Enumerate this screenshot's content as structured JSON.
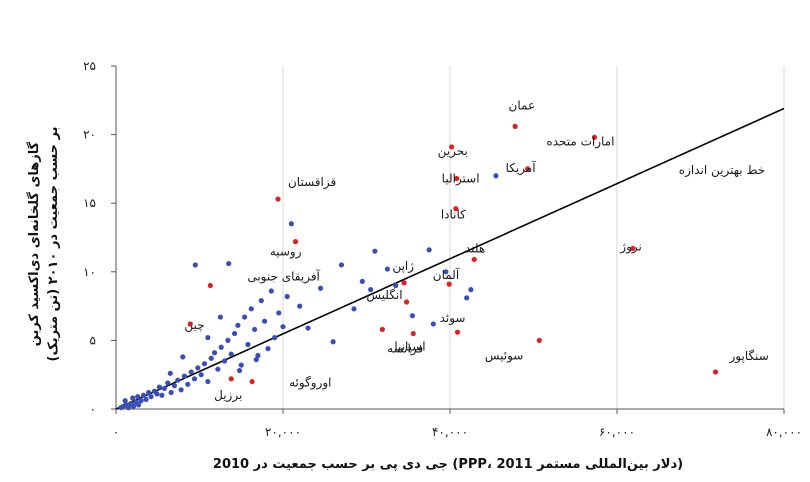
{
  "chart_data": {
    "type": "scatter",
    "xlabel": "(دلار بین‌المللی مستمر 2011 ،PPP) جی دی پی بر حسب جمعیت در 2010",
    "ylabel_lines": [
      "گازهای گلخانه‌ای دی‌اکسید کربن",
      "بر حسب جمعیت در ۲۰۱۰ (تن متریک)"
    ],
    "xlim": [
      0,
      80000
    ],
    "ylim": [
      0,
      25
    ],
    "x_ticks": [
      0,
      20000,
      40000,
      60000,
      80000
    ],
    "x_tick_labels": [
      "۰",
      "۲۰,۰۰۰",
      "۴۰,۰۰۰",
      "۶۰,۰۰۰",
      "۸۰,۰۰۰"
    ],
    "y_ticks": [
      0,
      5,
      10,
      15,
      20,
      25
    ],
    "y_tick_labels": [
      "۰",
      "۵",
      "۱۰",
      "۱۵",
      "۲۰",
      "۲۵"
    ],
    "grid": "vertical",
    "colors": {
      "other": "#3a4fb5",
      "highlight": "#e02020",
      "line": "#000000"
    },
    "trend_line": {
      "label": "خط بهترین اندازه",
      "x": [
        0,
        80000
      ],
      "y": [
        0,
        21.9
      ]
    },
    "highlighted": [
      {
        "name": "عمان",
        "x": 47800,
        "y": 20.6
      },
      {
        "name": "امارات متحده",
        "x": 57300,
        "y": 19.8
      },
      {
        "name": "بحرین",
        "x": 40200,
        "y": 19.1
      },
      {
        "name": "آمریکا",
        "x": 49300,
        "y": 17.5
      },
      {
        "name": "استرالیا",
        "x": 40800,
        "y": 16.8
      },
      {
        "name": "قزاقستان",
        "x": 19400,
        "y": 15.3
      },
      {
        "name": "کانادا",
        "x": 40700,
        "y": 14.6
      },
      {
        "name": "روسیه",
        "x": 21500,
        "y": 12.2
      },
      {
        "name": "نروژ",
        "x": 61900,
        "y": 11.7
      },
      {
        "name": "هلند",
        "x": 42900,
        "y": 10.9
      },
      {
        "name": "ژاپن",
        "x": 34500,
        "y": 9.2
      },
      {
        "name": "آلمان",
        "x": 39900,
        "y": 9.1
      },
      {
        "name": "آفریقای جنوبی",
        "x": 11300,
        "y": 9.0
      },
      {
        "name": "انگلیس",
        "x": 34800,
        "y": 7.8
      },
      {
        "name": "چین",
        "x": 8900,
        "y": 6.2
      },
      {
        "name": "اسپانیا",
        "x": 31900,
        "y": 5.8
      },
      {
        "name": "فرانسه",
        "x": 35600,
        "y": 5.5
      },
      {
        "name": "سوئد",
        "x": 40900,
        "y": 5.6
      },
      {
        "name": "سوئیس",
        "x": 50700,
        "y": 5.0
      },
      {
        "name": "سنگاپور",
        "x": 71800,
        "y": 2.7
      },
      {
        "name": "اوروگوئه",
        "x": 16300,
        "y": 2.0
      },
      {
        "name": "برزیل",
        "x": 13800,
        "y": 2.2
      }
    ],
    "others": [
      {
        "x": 600,
        "y": 0.1
      },
      {
        "x": 900,
        "y": 0.2
      },
      {
        "x": 1200,
        "y": 0.3
      },
      {
        "x": 1500,
        "y": 0.1
      },
      {
        "x": 1800,
        "y": 0.4
      },
      {
        "x": 2100,
        "y": 0.2
      },
      {
        "x": 2400,
        "y": 0.5
      },
      {
        "x": 2700,
        "y": 0.3
      },
      {
        "x": 3000,
        "y": 0.6
      },
      {
        "x": 1100,
        "y": 0.6
      },
      {
        "x": 2000,
        "y": 0.8
      },
      {
        "x": 2600,
        "y": 0.9
      },
      {
        "x": 3300,
        "y": 1.0
      },
      {
        "x": 3600,
        "y": 0.7
      },
      {
        "x": 3900,
        "y": 1.2
      },
      {
        "x": 4200,
        "y": 0.9
      },
      {
        "x": 4600,
        "y": 1.3
      },
      {
        "x": 4900,
        "y": 1.1
      },
      {
        "x": 5200,
        "y": 1.6
      },
      {
        "x": 5500,
        "y": 1.0
      },
      {
        "x": 5800,
        "y": 1.5
      },
      {
        "x": 6200,
        "y": 1.9
      },
      {
        "x": 6600,
        "y": 1.2
      },
      {
        "x": 7000,
        "y": 1.7
      },
      {
        "x": 7400,
        "y": 2.1
      },
      {
        "x": 7800,
        "y": 1.4
      },
      {
        "x": 8200,
        "y": 2.4
      },
      {
        "x": 8600,
        "y": 1.8
      },
      {
        "x": 9000,
        "y": 2.7
      },
      {
        "x": 9400,
        "y": 2.2
      },
      {
        "x": 9800,
        "y": 3.0
      },
      {
        "x": 10200,
        "y": 2.5
      },
      {
        "x": 10600,
        "y": 3.3
      },
      {
        "x": 11000,
        "y": 2.0
      },
      {
        "x": 11400,
        "y": 3.7
      },
      {
        "x": 11800,
        "y": 4.1
      },
      {
        "x": 12200,
        "y": 2.9
      },
      {
        "x": 12600,
        "y": 4.5
      },
      {
        "x": 13000,
        "y": 3.5
      },
      {
        "x": 13400,
        "y": 5.0
      },
      {
        "x": 13800,
        "y": 4.0
      },
      {
        "x": 14200,
        "y": 5.5
      },
      {
        "x": 14600,
        "y": 6.1
      },
      {
        "x": 15000,
        "y": 3.2
      },
      {
        "x": 15400,
        "y": 6.7
      },
      {
        "x": 15800,
        "y": 4.7
      },
      {
        "x": 16200,
        "y": 7.3
      },
      {
        "x": 16600,
        "y": 5.8
      },
      {
        "x": 17000,
        "y": 3.9
      },
      {
        "x": 17400,
        "y": 7.9
      },
      {
        "x": 17800,
        "y": 6.4
      },
      {
        "x": 18200,
        "y": 4.4
      },
      {
        "x": 18600,
        "y": 8.6
      },
      {
        "x": 19000,
        "y": 5.2
      },
      {
        "x": 19500,
        "y": 7.0
      },
      {
        "x": 20000,
        "y": 6.0
      },
      {
        "x": 20500,
        "y": 8.2
      },
      {
        "x": 21000,
        "y": 13.5
      },
      {
        "x": 22000,
        "y": 7.5
      },
      {
        "x": 23000,
        "y": 5.9
      },
      {
        "x": 24500,
        "y": 8.8
      },
      {
        "x": 26000,
        "y": 4.9
      },
      {
        "x": 27000,
        "y": 10.5
      },
      {
        "x": 28500,
        "y": 7.3
      },
      {
        "x": 29500,
        "y": 9.3
      },
      {
        "x": 30500,
        "y": 8.7
      },
      {
        "x": 31000,
        "y": 11.5
      },
      {
        "x": 32500,
        "y": 10.2
      },
      {
        "x": 33500,
        "y": 9.0
      },
      {
        "x": 35500,
        "y": 6.8
      },
      {
        "x": 37500,
        "y": 11.6
      },
      {
        "x": 38000,
        "y": 6.2
      },
      {
        "x": 39500,
        "y": 10.0
      },
      {
        "x": 42000,
        "y": 8.1
      },
      {
        "x": 42500,
        "y": 8.7
      },
      {
        "x": 45500,
        "y": 17.0
      },
      {
        "x": 9500,
        "y": 10.5
      },
      {
        "x": 13500,
        "y": 10.6
      },
      {
        "x": 11000,
        "y": 5.2
      },
      {
        "x": 12500,
        "y": 6.7
      },
      {
        "x": 8000,
        "y": 3.8
      },
      {
        "x": 6500,
        "y": 2.6
      },
      {
        "x": 14800,
        "y": 2.8
      },
      {
        "x": 16800,
        "y": 3.6
      }
    ]
  }
}
